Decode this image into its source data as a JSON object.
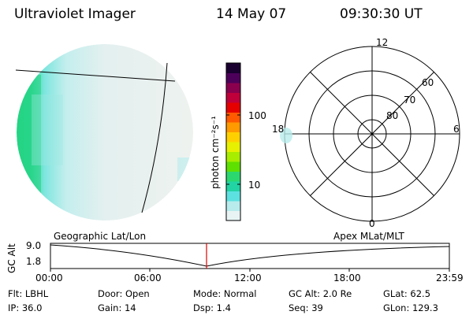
{
  "header": {
    "title": "Ultraviolet Imager",
    "date": "14 May 07",
    "time": "09:30:30 UT"
  },
  "colorbar": {
    "unit_label": "photon cm⁻²s⁻¹",
    "ticks": [
      "100",
      "10"
    ],
    "colors": [
      "#e8f4f4",
      "#b8ecec",
      "#5de0e0",
      "#22d3a3",
      "#2bd870",
      "#5ee000",
      "#a8ec00",
      "#e6f000",
      "#ffd000",
      "#ff9a00",
      "#ff5a00",
      "#e60000",
      "#c0003a",
      "#8a004e",
      "#4c005a",
      "#1a0030"
    ]
  },
  "polar_plot": {
    "mlt_labels": [
      "12",
      "6",
      "0",
      "18"
    ],
    "mlat_labels": [
      "60",
      "70",
      "80"
    ]
  },
  "timeline": {
    "left_title": "Geographic Lat/Lon",
    "right_title": "Apex MLat/MLT",
    "y_label": "GC Alt",
    "y_ticks": [
      "9.0",
      "1.8"
    ],
    "x_ticks": [
      "00:00",
      "06:00",
      "12:00",
      "18:00",
      "23:59"
    ],
    "marker_color": "#e00000"
  },
  "info": {
    "flt": "Flt: LBHL",
    "ip": "IP: 36.0",
    "door": "Door: Open",
    "gain": "Gain: 14",
    "mode": "Mode: Normal",
    "dsp": "Dsp:    1.4",
    "gcalt": "GC Alt: 2.0 Re",
    "seq": "Seq: 39",
    "glat": "GLat:   62.5",
    "glon": "GLon: 129.3"
  }
}
